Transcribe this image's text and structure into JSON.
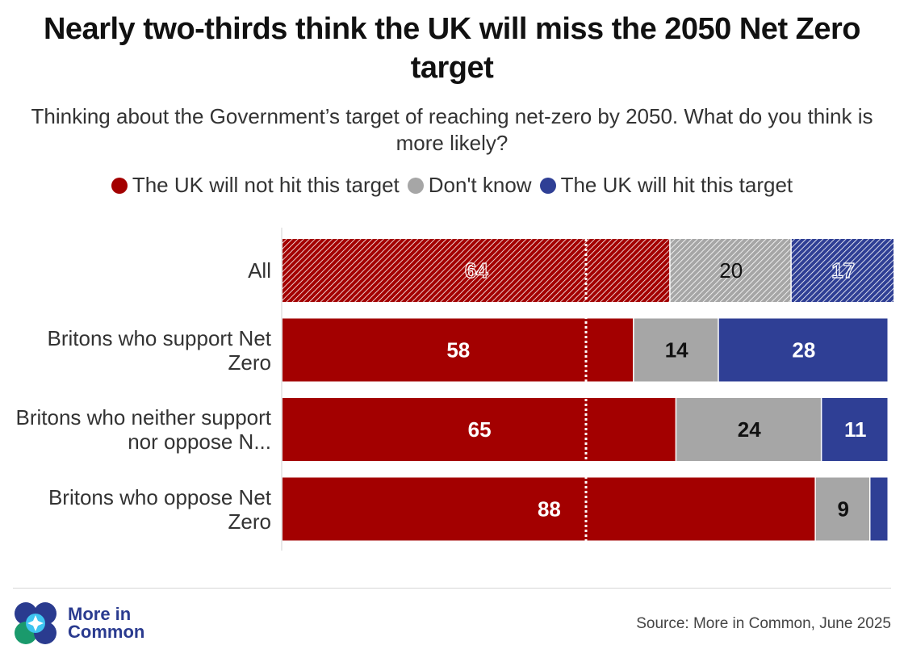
{
  "chart_data": {
    "type": "bar",
    "orientation": "horizontal",
    "stacked": true,
    "title": "Nearly two-thirds think the UK will miss the 2050 Net Zero target",
    "subtitle": "Thinking about the Government’s target of reaching net-zero by 2050. What do you think is more likely?",
    "categories": [
      "All",
      "Britons who support Net Zero",
      "Britons who neither support nor oppose N...",
      "Britons who oppose Net Zero"
    ],
    "series": [
      {
        "name": "The UK will not hit this target",
        "color": "#a30000",
        "values": [
          64,
          58,
          65,
          88
        ]
      },
      {
        "name": "Don't know",
        "color": "#a6a6a6",
        "values": [
          20,
          14,
          24,
          9
        ]
      },
      {
        "name": "The UK will hit this target",
        "color": "#2f3f95",
        "values": [
          17,
          28,
          11,
          3
        ]
      }
    ],
    "data_labels": [
      [
        "64",
        "20",
        "17"
      ],
      [
        "58",
        "14",
        "28"
      ],
      [
        "65",
        "24",
        "11"
      ],
      [
        "88",
        "9",
        ""
      ]
    ],
    "hatched_rows": [
      0
    ],
    "reference_line": 50,
    "xlim": [
      0,
      100
    ]
  },
  "footer": {
    "logo_line1": "More in",
    "logo_line2": "Common",
    "source": "Source: More in Common, June 2025"
  },
  "colors": {
    "not_hit": "#a30000",
    "dont_know": "#a6a6a6",
    "hit": "#2f3f95"
  }
}
